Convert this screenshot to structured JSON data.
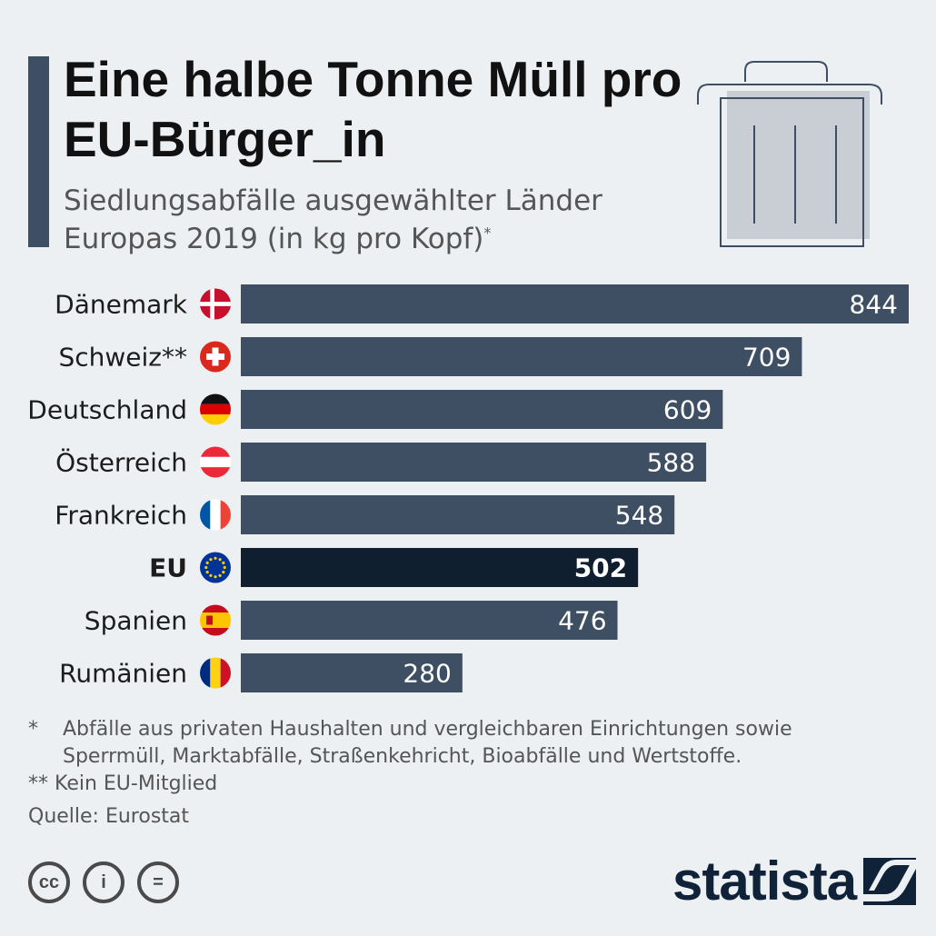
{
  "header": {
    "title": "Eine halbe Tonne Müll pro EU-Bürger_in",
    "subtitle": "Siedlungsabfälle ausgewählter Länder Europas 2019 (in kg pro Kopf)",
    "subtitle_mark": "*"
  },
  "icons": {
    "header": "trash-bin-icon",
    "licenses": [
      "creative-commons-icon",
      "attribution-icon",
      "no-derivatives-icon"
    ],
    "brand": "statista-logo-icon"
  },
  "colors": {
    "background": "#edf0f3",
    "bar": "#3e4f63",
    "bar_highlight": "#0f1f30",
    "accent_bar": "#3e4f63"
  },
  "chart_data": {
    "type": "bar",
    "orientation": "horizontal",
    "title": "Eine halbe Tonne Müll pro EU-Bürger_in",
    "unit": "kg pro Kopf",
    "xlim": [
      0,
      844
    ],
    "categories": [
      "Dänemark",
      "Schweiz**",
      "Deutschland",
      "Österreich",
      "Frankreich",
      "EU",
      "Spanien",
      "Rumänien"
    ],
    "values": [
      844,
      709,
      609,
      588,
      548,
      502,
      476,
      280
    ],
    "highlight": "EU",
    "flags": [
      "denmark-flag-icon",
      "switzerland-flag-icon",
      "germany-flag-icon",
      "austria-flag-icon",
      "france-flag-icon",
      "eu-flag-icon",
      "spain-flag-icon",
      "romania-flag-icon"
    ]
  },
  "notes": {
    "note1_mark": "*",
    "note1_text": "Abfälle aus privaten Haushalten und vergleichbaren Einrichtungen sowie Sperrmüll, Marktabfälle, Straßenkehricht, Bioabfälle und Wertstoffe.",
    "note2": "** Kein EU-Mitglied",
    "source": "Quelle: Eurostat"
  },
  "footer": {
    "cc": "cc",
    "by": "i",
    "nd": "=",
    "brand": "statista"
  }
}
